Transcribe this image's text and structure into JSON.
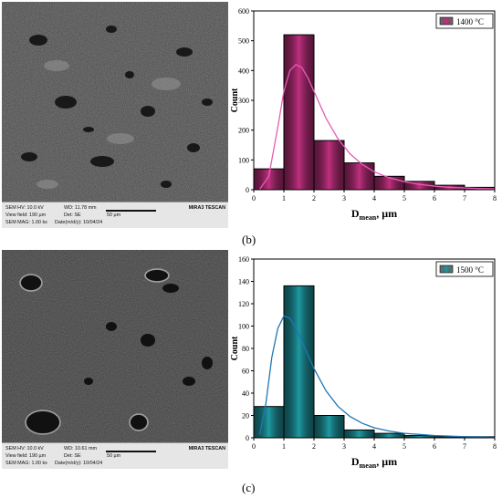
{
  "panel_b_label": "(b)",
  "panel_c_label": "(c)",
  "sem_top": {
    "hv": "SEM HV: 10.0 kV",
    "wd": "WD: 11.78 mm",
    "brand": "MIRA3 TESCAN",
    "view": "View field: 190 µm",
    "det": "Det: SE",
    "scale": "50 µm",
    "mag": "SEM MAG: 1.00 kx",
    "date": "Date(m/d/y): 10/04/24"
  },
  "sem_bottom": {
    "hv": "SEM HV: 10.0 kV",
    "wd": "WD: 10.61 mm",
    "brand": "MIRA3 TESCAN",
    "view": "View field: 190 µm",
    "det": "Det: SE",
    "scale": "50 µm",
    "mag": "SEM MAG: 1.00 kx",
    "date": "Date(m/d/y): 10/04/24"
  },
  "colors": {
    "magenta_bar": "#c0307f",
    "magenta_curve": "#e85cb5",
    "cyan_bar": "#1f9aa3",
    "cyan_curve": "#1f77b4"
  },
  "chart_data": [
    {
      "type": "bar",
      "xlabel": "D",
      "xlabel_sub": "mean",
      "xlabel_unit": ", µm",
      "ylabel": "Count",
      "legend": "1400 °C",
      "legend_position": "top-right",
      "xlim": [
        0,
        8
      ],
      "ylim": [
        0,
        600
      ],
      "xticks": [
        "0",
        "1",
        "2",
        "3",
        "4",
        "5",
        "6",
        "7",
        "8"
      ],
      "yticks": [
        "0",
        "100",
        "200",
        "300",
        "400",
        "500",
        "600"
      ],
      "bins": [
        {
          "x0": 0,
          "x1": 1,
          "count": 70
        },
        {
          "x0": 1,
          "x1": 2,
          "count": 520
        },
        {
          "x0": 2,
          "x1": 3,
          "count": 165
        },
        {
          "x0": 3,
          "x1": 4,
          "count": 90
        },
        {
          "x0": 4,
          "x1": 5,
          "count": 45
        },
        {
          "x0": 5,
          "x1": 6,
          "count": 28
        },
        {
          "x0": 6,
          "x1": 7,
          "count": 15
        },
        {
          "x0": 7,
          "x1": 8,
          "count": 8
        }
      ],
      "fit_curve": {
        "x": [
          0.2,
          0.5,
          0.8,
          1.0,
          1.2,
          1.4,
          1.6,
          1.8,
          2.0,
          2.4,
          2.8,
          3.2,
          3.6,
          4.0,
          4.5,
          5.0,
          5.5,
          6.0,
          6.5,
          7.0,
          7.5,
          8.0
        ],
        "y": [
          2,
          45,
          210,
          330,
          400,
          420,
          410,
          375,
          330,
          240,
          170,
          120,
          85,
          60,
          40,
          27,
          18,
          12,
          8,
          6,
          4,
          3
        ]
      }
    },
    {
      "type": "bar",
      "xlabel": "D",
      "xlabel_sub": "mean",
      "xlabel_unit": ", µm",
      "ylabel": "Count",
      "legend": "1500 °C",
      "legend_position": "top-right",
      "xlim": [
        0,
        8
      ],
      "ylim": [
        0,
        160
      ],
      "xticks": [
        "0",
        "1",
        "2",
        "3",
        "4",
        "5",
        "6",
        "7",
        "8"
      ],
      "yticks": [
        "0",
        "20",
        "40",
        "60",
        "80",
        "100",
        "120",
        "140",
        "160"
      ],
      "bins": [
        {
          "x0": 0,
          "x1": 1,
          "count": 28
        },
        {
          "x0": 1,
          "x1": 2,
          "count": 136
        },
        {
          "x0": 2,
          "x1": 3,
          "count": 20
        },
        {
          "x0": 3,
          "x1": 4,
          "count": 7
        },
        {
          "x0": 4,
          "x1": 5,
          "count": 4
        },
        {
          "x0": 5,
          "x1": 6,
          "count": 2
        },
        {
          "x0": 6,
          "x1": 7,
          "count": 1
        },
        {
          "x0": 7,
          "x1": 8,
          "count": 1
        }
      ],
      "fit_curve": {
        "x": [
          0.2,
          0.4,
          0.6,
          0.8,
          1.0,
          1.2,
          1.4,
          1.6,
          1.8,
          2.0,
          2.4,
          2.8,
          3.2,
          3.6,
          4.0,
          4.5,
          5.0,
          5.5,
          6.0,
          7.0,
          8.0
        ],
        "y": [
          3,
          30,
          72,
          98,
          109,
          107,
          98,
          86,
          74,
          62,
          42,
          28,
          19,
          13,
          9,
          6,
          4,
          3,
          2,
          1,
          0.5
        ]
      }
    }
  ]
}
